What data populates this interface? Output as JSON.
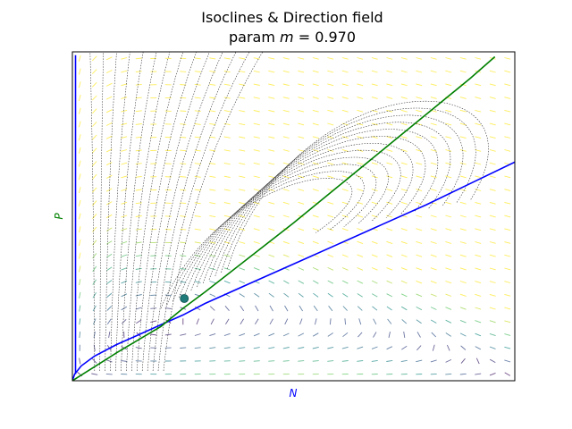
{
  "chart_data": {
    "type": "line",
    "title_line1": "Isoclines & Direction field",
    "title_prefix": "param ",
    "title_param": "m",
    "title_suffix": " = 0.970",
    "xlabel": "N",
    "ylabel": "P",
    "xlabel_color": "#0000ff",
    "ylabel_color": "#008000",
    "xlim": [
      0,
      1
    ],
    "ylim": [
      0,
      1
    ],
    "grid": false,
    "ticks_visible": false,
    "series": [
      {
        "color": "#0000ff",
        "points": [
          [
            0.0,
            0.0
          ],
          [
            0.005,
            0.02
          ],
          [
            0.02,
            0.045
          ],
          [
            0.05,
            0.075
          ],
          [
            0.1,
            0.11
          ],
          [
            0.15,
            0.14
          ],
          [
            0.2,
            0.17
          ],
          [
            0.25,
            0.2
          ],
          [
            0.3,
            0.235
          ],
          [
            0.4,
            0.295
          ],
          [
            0.5,
            0.355
          ],
          [
            0.6,
            0.415
          ],
          [
            0.7,
            0.475
          ],
          [
            0.8,
            0.535
          ],
          [
            0.9,
            0.6
          ],
          [
            1.0,
            0.665
          ]
        ]
      },
      {
        "color": "#0000ff",
        "points": [
          [
            0.007,
            0.02
          ],
          [
            0.007,
            0.99
          ]
        ]
      },
      {
        "color": "#008000",
        "points": [
          [
            0.0,
            0.0
          ],
          [
            0.1,
            0.085
          ],
          [
            0.2,
            0.165
          ],
          [
            0.25,
            0.22
          ],
          [
            0.3,
            0.27
          ],
          [
            0.4,
            0.375
          ],
          [
            0.5,
            0.48
          ],
          [
            0.6,
            0.59
          ],
          [
            0.7,
            0.7
          ],
          [
            0.8,
            0.81
          ],
          [
            0.9,
            0.92
          ],
          [
            0.955,
            0.985
          ]
        ]
      }
    ],
    "equilibrium": {
      "x": 0.253,
      "y": 0.25,
      "color": "#1f7a7a"
    }
  }
}
